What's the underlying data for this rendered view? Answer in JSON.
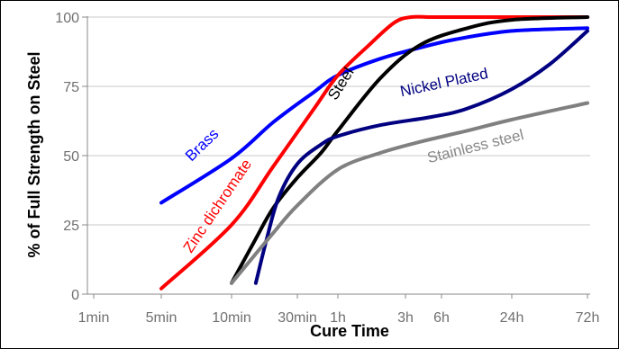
{
  "chart_data": {
    "type": "line",
    "xlabel": "Cure Time",
    "ylabel": "% of Full Strength on Steel",
    "x_ticks": [
      {
        "label": "1min",
        "minutes": 1
      },
      {
        "label": "5min",
        "minutes": 5
      },
      {
        "label": "10min",
        "minutes": 10
      },
      {
        "label": "30min",
        "minutes": 30
      },
      {
        "label": "1h",
        "minutes": 60
      },
      {
        "label": "3h",
        "minutes": 180
      },
      {
        "label": "6h",
        "minutes": 360
      },
      {
        "label": "24h",
        "minutes": 1440
      },
      {
        "label": "72h",
        "minutes": 4320
      }
    ],
    "x_unit": "minutes",
    "x_scale": "log",
    "xlim": [
      1,
      4320
    ],
    "y_ticks": [
      0,
      25,
      50,
      75,
      100
    ],
    "ylim": [
      0,
      100
    ],
    "grid": {
      "horizontal": true,
      "vertical": false
    },
    "series": [
      {
        "name": "Brass",
        "color": "#0000ff",
        "x": [
          5,
          10,
          20,
          40,
          60,
          120,
          240,
          480,
          1440,
          4320
        ],
        "y": [
          33,
          49,
          62,
          73,
          79,
          85,
          89,
          92,
          95,
          96
        ]
      },
      {
        "name": "Zinc dichromate",
        "color": "#ff0000",
        "x": [
          5,
          10,
          20,
          40,
          60,
          100,
          150,
          200,
          300,
          600,
          4320
        ],
        "y": [
          2,
          25,
          46,
          67,
          79,
          90,
          98,
          100,
          100,
          100,
          100
        ]
      },
      {
        "name": "Steel",
        "color": "#000000",
        "x": [
          10,
          15,
          20,
          30,
          45,
          60,
          120,
          240,
          600,
          1440,
          4320
        ],
        "y": [
          4,
          20,
          31,
          42,
          51,
          59,
          78,
          90,
          96,
          99,
          100
        ]
      },
      {
        "name": "Nickel Plated",
        "color": "#000080",
        "x": [
          15,
          18,
          22,
          30,
          45,
          60,
          120,
          300,
          600,
          1440,
          2500,
          4320
        ],
        "y": [
          4,
          20,
          35,
          47,
          54,
          57,
          61,
          64,
          67,
          74,
          83,
          95
        ]
      },
      {
        "name": "Stainless steel",
        "color": "#808080",
        "x": [
          10,
          20,
          30,
          60,
          120,
          240,
          600,
          1440,
          4320
        ],
        "y": [
          4,
          22,
          32,
          45,
          51,
          55,
          59,
          63,
          69
        ]
      }
    ]
  }
}
